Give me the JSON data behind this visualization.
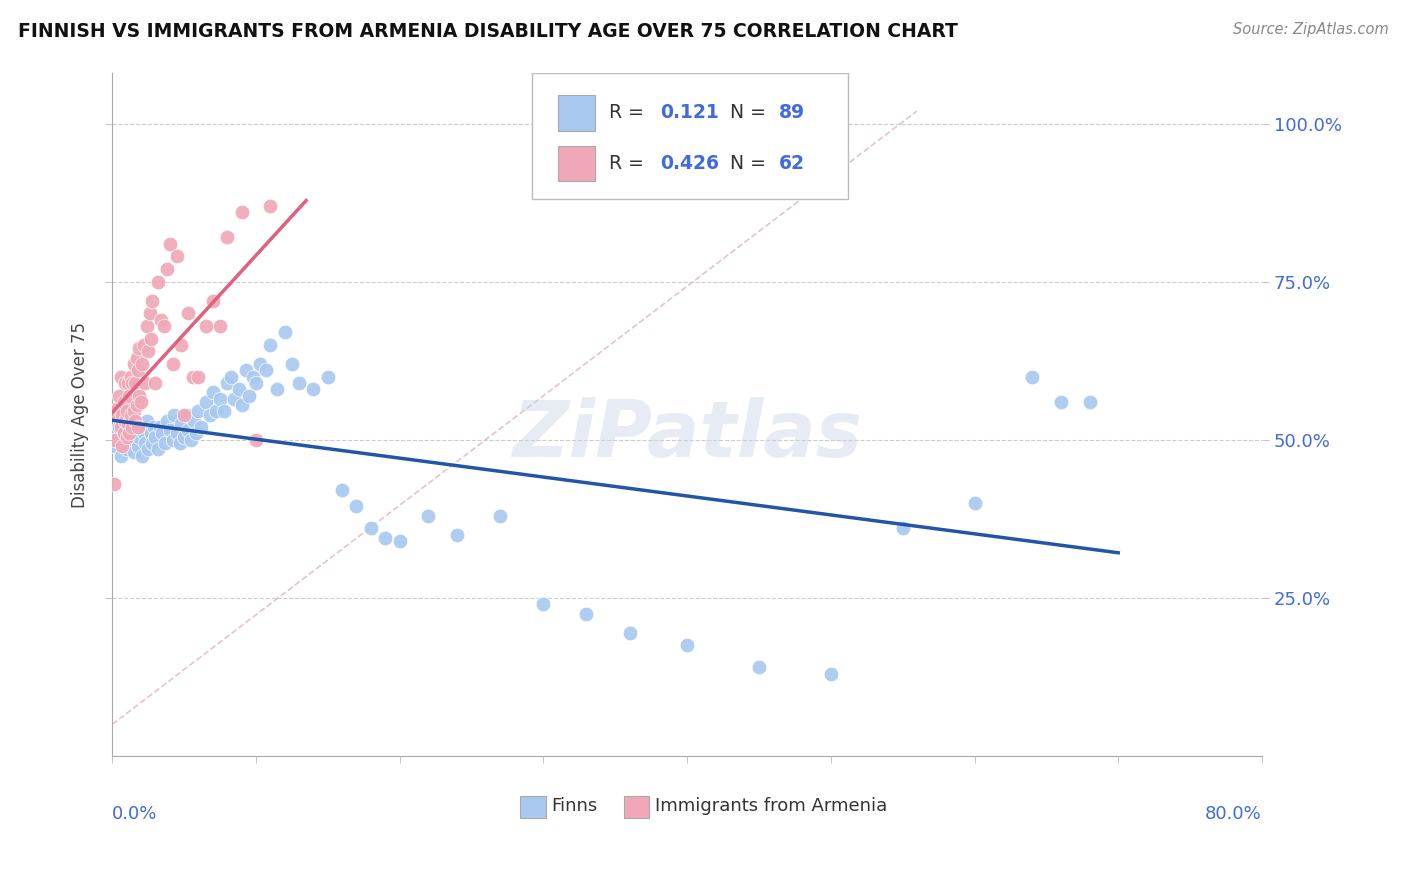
{
  "title": "FINNISH VS IMMIGRANTS FROM ARMENIA DISABILITY AGE OVER 75 CORRELATION CHART",
  "source": "Source: ZipAtlas.com",
  "ylabel": "Disability Age Over 75",
  "legend_finns": "Finns",
  "legend_armenia": "Immigrants from Armenia",
  "R_finns": "0.121",
  "N_finns": "89",
  "R_armenia": "0.426",
  "N_armenia": "62",
  "finns_color": "#a8c8f0",
  "armenia_color": "#f0a8b8",
  "finns_line_color": "#2255aa",
  "armenia_line_color": "#e06080",
  "diagonal_color": "#e0b8c8",
  "watermark": "ZiPatlas",
  "xlim": [
    0.0,
    0.8
  ],
  "ylim": [
    0.0,
    1.08
  ],
  "background_color": "#ffffff",
  "grid_color": "#cccccc",
  "title_color": "#222222",
  "axis_color": "#4169E1",
  "watermark_color": "#c8d4e8",
  "watermark_alpha": 0.45,
  "finns_x": [
    0.001,
    0.003,
    0.005,
    0.006,
    0.007,
    0.008,
    0.009,
    0.01,
    0.011,
    0.012,
    0.013,
    0.014,
    0.015,
    0.016,
    0.017,
    0.018,
    0.019,
    0.02,
    0.021,
    0.022,
    0.023,
    0.024,
    0.025,
    0.027,
    0.028,
    0.029,
    0.03,
    0.032,
    0.033,
    0.035,
    0.037,
    0.038,
    0.04,
    0.042,
    0.043,
    0.045,
    0.047,
    0.048,
    0.05,
    0.052,
    0.053,
    0.055,
    0.057,
    0.058,
    0.06,
    0.062,
    0.065,
    0.068,
    0.07,
    0.072,
    0.075,
    0.078,
    0.08,
    0.083,
    0.085,
    0.088,
    0.09,
    0.093,
    0.095,
    0.098,
    0.1,
    0.103,
    0.107,
    0.11,
    0.115,
    0.12,
    0.125,
    0.13,
    0.14,
    0.15,
    0.16,
    0.17,
    0.18,
    0.19,
    0.2,
    0.22,
    0.24,
    0.27,
    0.3,
    0.33,
    0.36,
    0.4,
    0.45,
    0.5,
    0.55,
    0.6,
    0.64,
    0.66,
    0.68
  ],
  "finns_y": [
    0.49,
    0.51,
    0.52,
    0.475,
    0.505,
    0.495,
    0.51,
    0.485,
    0.52,
    0.5,
    0.495,
    0.515,
    0.48,
    0.51,
    0.525,
    0.49,
    0.505,
    0.52,
    0.475,
    0.51,
    0.495,
    0.53,
    0.485,
    0.51,
    0.495,
    0.52,
    0.505,
    0.485,
    0.52,
    0.51,
    0.495,
    0.53,
    0.515,
    0.5,
    0.54,
    0.51,
    0.495,
    0.525,
    0.505,
    0.54,
    0.515,
    0.5,
    0.53,
    0.51,
    0.545,
    0.52,
    0.56,
    0.54,
    0.575,
    0.545,
    0.565,
    0.545,
    0.59,
    0.6,
    0.565,
    0.58,
    0.555,
    0.61,
    0.57,
    0.6,
    0.59,
    0.62,
    0.61,
    0.65,
    0.58,
    0.67,
    0.62,
    0.59,
    0.58,
    0.6,
    0.42,
    0.395,
    0.36,
    0.345,
    0.34,
    0.38,
    0.35,
    0.38,
    0.24,
    0.225,
    0.195,
    0.175,
    0.14,
    0.13,
    0.36,
    0.4,
    0.6,
    0.56,
    0.56
  ],
  "armenia_x": [
    0.001,
    0.002,
    0.003,
    0.004,
    0.005,
    0.006,
    0.006,
    0.007,
    0.007,
    0.008,
    0.008,
    0.009,
    0.009,
    0.01,
    0.01,
    0.011,
    0.011,
    0.012,
    0.012,
    0.013,
    0.013,
    0.014,
    0.014,
    0.015,
    0.015,
    0.016,
    0.016,
    0.017,
    0.017,
    0.018,
    0.018,
    0.019,
    0.019,
    0.02,
    0.021,
    0.022,
    0.023,
    0.024,
    0.025,
    0.026,
    0.027,
    0.028,
    0.03,
    0.032,
    0.034,
    0.036,
    0.038,
    0.04,
    0.042,
    0.045,
    0.048,
    0.05,
    0.053,
    0.056,
    0.06,
    0.065,
    0.07,
    0.075,
    0.08,
    0.09,
    0.1,
    0.11
  ],
  "armenia_y": [
    0.43,
    0.5,
    0.54,
    0.55,
    0.57,
    0.52,
    0.6,
    0.49,
    0.54,
    0.51,
    0.56,
    0.53,
    0.59,
    0.505,
    0.545,
    0.525,
    0.59,
    0.51,
    0.57,
    0.54,
    0.6,
    0.52,
    0.59,
    0.545,
    0.62,
    0.53,
    0.59,
    0.555,
    0.63,
    0.52,
    0.61,
    0.57,
    0.645,
    0.56,
    0.62,
    0.65,
    0.59,
    0.68,
    0.64,
    0.7,
    0.66,
    0.72,
    0.59,
    0.75,
    0.69,
    0.68,
    0.77,
    0.81,
    0.62,
    0.79,
    0.65,
    0.54,
    0.7,
    0.6,
    0.6,
    0.68,
    0.72,
    0.68,
    0.82,
    0.86,
    0.5,
    0.87
  ]
}
